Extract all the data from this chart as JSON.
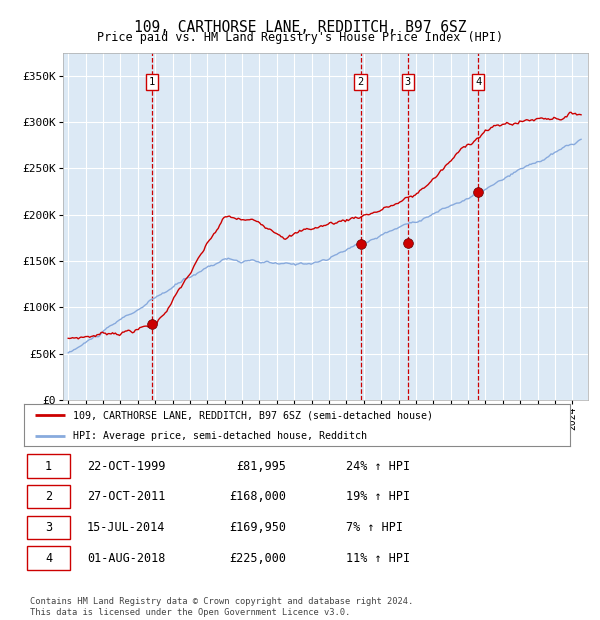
{
  "title": "109, CARTHORSE LANE, REDDITCH, B97 6SZ",
  "subtitle": "Price paid vs. HM Land Registry's House Price Index (HPI)",
  "fig_bg_color": "#ffffff",
  "plot_bg_color": "#dce9f5",
  "red_line_color": "#cc0000",
  "blue_line_color": "#88aadd",
  "grid_color": "#ffffff",
  "dashed_line_color": "#cc0000",
  "yticks": [
    0,
    50000,
    100000,
    150000,
    200000,
    250000,
    300000,
    350000
  ],
  "ytick_labels": [
    "£0",
    "£50K",
    "£100K",
    "£150K",
    "£200K",
    "£250K",
    "£300K",
    "£350K"
  ],
  "xlim_start": 1994.7,
  "xlim_end": 2024.9,
  "ylim": [
    0,
    375000
  ],
  "purchases": [
    {
      "num": 1,
      "date": "22-OCT-1999",
      "year": 1999.81,
      "price": 81995,
      "pct": "24%",
      "dir": "↑"
    },
    {
      "num": 2,
      "date": "27-OCT-2011",
      "year": 2011.82,
      "price": 168000,
      "pct": "19%",
      "dir": "↑"
    },
    {
      "num": 3,
      "date": "15-JUL-2014",
      "year": 2014.54,
      "price": 169950,
      "pct": "7%",
      "dir": "↑"
    },
    {
      "num": 4,
      "date": "01-AUG-2018",
      "year": 2018.58,
      "price": 225000,
      "pct": "11%",
      "dir": "↑"
    }
  ],
  "legend_red": "109, CARTHORSE LANE, REDDITCH, B97 6SZ (semi-detached house)",
  "legend_blue": "HPI: Average price, semi-detached house, Redditch",
  "footer": "Contains HM Land Registry data © Crown copyright and database right 2024.\nThis data is licensed under the Open Government Licence v3.0.",
  "table_rows": [
    [
      "1",
      "22-OCT-1999",
      "£81,995",
      "24% ↑ HPI"
    ],
    [
      "2",
      "27-OCT-2011",
      "£168,000",
      "19% ↑ HPI"
    ],
    [
      "3",
      "15-JUL-2014",
      "£169,950",
      "7% ↑ HPI"
    ],
    [
      "4",
      "01-AUG-2018",
      "£225,000",
      "11% ↑ HPI"
    ]
  ]
}
